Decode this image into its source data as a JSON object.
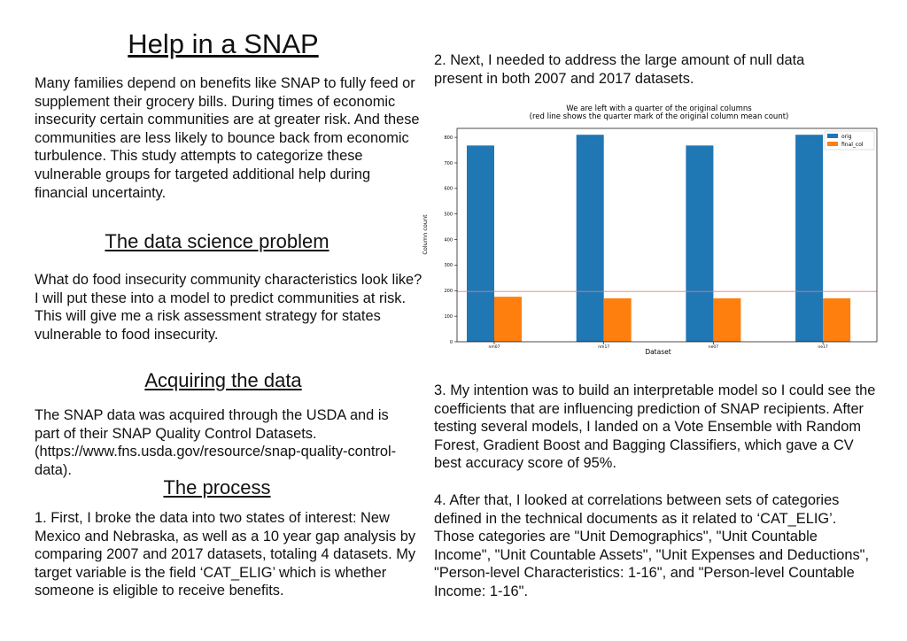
{
  "title": "Help in a SNAP",
  "intro": "Many families depend on benefits like SNAP to fully feed or supplement their grocery bills.  During times of economic insecurity certain communities are at greater risk.  And these communities are less likely to bounce back from economic turbulence. This study attempts to categorize these vulnerable groups for targeted additional help during financial uncertainty.",
  "sections": [
    {
      "heading": "The data science problem",
      "body": "What do food insecurity community characteristics look like?  I will put these into a model to predict communities at risk.  This will give me a risk assessment strategy for states vulnerable to food insecurity."
    },
    {
      "heading": "Acquiring the data",
      "body": "The SNAP data was acquired through the USDA and is part of their SNAP Quality Control Datasets. (https://www.fns.usda.gov/resource/snap-quality-control-data)."
    },
    {
      "heading": "The process",
      "body": "1. First, I broke the data into two states of interest: New Mexico and Nebraska, as well as a 10 year gap analysis by comparing 2007 and 2017 datasets, totaling 4 datasets. My target variable is the field ‘CAT_ELIG’ which is whether someone is eligible to receive benefits."
    }
  ],
  "steps": [
    "2. Next, I needed to address the large amount of null data present in both 2007 and 2017 datasets.",
    "3. My intention was to build an interpretable model so I could see the coefficients that are influencing prediction of SNAP recipients.  After testing several models, I landed on a Vote Ensemble with Random Forest, Gradient Boost and Bagging Classifiers, which gave a CV best accuracy score of 95%.",
    "4. After that, I looked at correlations between sets of categories defined in the technical documents as it related to ‘CAT_ELIG’. Those categories are \"Unit Demographics\", \"Unit Countable Income\", \"Unit Countable Assets\", \"Unit Expenses and Deductions\", \"Person-level Characteristics: 1-16\", and \"Person-level Countable Income: 1-16\"."
  ],
  "chart_data": {
    "type": "bar",
    "title": "We are left with a quarter of the original columns",
    "subtitle": "(red line shows the quarter mark of the original column mean count)",
    "xlabel": "Dataset",
    "ylabel": "Column count",
    "categories": [
      "nm07",
      "nm17",
      "ne07",
      "ne17"
    ],
    "series": [
      {
        "name": "orig",
        "color": "#1f77b4",
        "values": [
          768,
          810,
          768,
          810
        ]
      },
      {
        "name": "final_col",
        "color": "#ff7f0e",
        "values": [
          176,
          170,
          170,
          170
        ]
      }
    ],
    "hline": 197,
    "hline_color": "#e8797b",
    "ylim": [
      0,
      835
    ],
    "yticks": [
      0,
      100,
      200,
      300,
      400,
      500,
      600,
      700,
      800
    ],
    "legend": "upper right"
  }
}
